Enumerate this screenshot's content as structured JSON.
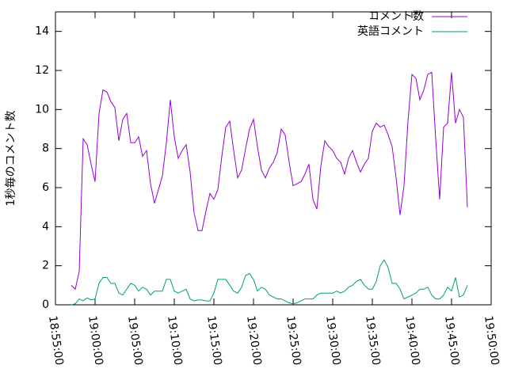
{
  "chart_data": {
    "type": "line",
    "y_label": "1秒毎のコメント数",
    "x": [
      "18:57:00",
      "18:57:30",
      "18:58:00",
      "18:58:30",
      "18:59:00",
      "18:59:30",
      "19:00:00",
      "19:00:30",
      "19:01:00",
      "19:01:30",
      "19:02:00",
      "19:02:30",
      "19:03:00",
      "19:03:30",
      "19:04:00",
      "19:04:30",
      "19:05:00",
      "19:05:30",
      "19:06:00",
      "19:06:30",
      "19:07:00",
      "19:07:30",
      "19:08:00",
      "19:08:30",
      "19:09:00",
      "19:09:30",
      "19:10:00",
      "19:10:30",
      "19:11:00",
      "19:11:30",
      "19:12:00",
      "19:12:30",
      "19:13:00",
      "19:13:30",
      "19:14:00",
      "19:14:30",
      "19:15:00",
      "19:15:30",
      "19:16:00",
      "19:16:30",
      "19:17:00",
      "19:17:30",
      "19:18:00",
      "19:18:30",
      "19:19:00",
      "19:19:30",
      "19:20:00",
      "19:20:30",
      "19:21:00",
      "19:21:30",
      "19:22:00",
      "19:22:30",
      "19:23:00",
      "19:23:30",
      "19:24:00",
      "19:24:30",
      "19:25:00",
      "19:25:30",
      "19:26:00",
      "19:26:30",
      "19:27:00",
      "19:27:30",
      "19:28:00",
      "19:28:30",
      "19:29:00",
      "19:29:30",
      "19:30:00",
      "19:30:30",
      "19:31:00",
      "19:31:30",
      "19:32:00",
      "19:32:30",
      "19:33:00",
      "19:33:30",
      "19:34:00",
      "19:34:30",
      "19:35:00",
      "19:35:30",
      "19:36:00",
      "19:36:30",
      "19:37:00",
      "19:37:30",
      "19:38:00",
      "19:38:30",
      "19:39:00",
      "19:39:30",
      "19:40:00",
      "19:40:30",
      "19:41:00",
      "19:41:30",
      "19:42:00",
      "19:42:30",
      "19:43:00",
      "19:43:30",
      "19:44:00",
      "19:44:30",
      "19:45:00",
      "19:45:30",
      "19:46:00",
      "19:46:30",
      "19:47:00"
    ],
    "series": [
      {
        "name": "コメント数",
        "color": "#9400d3",
        "values": [
          1.0,
          0.8,
          1.7,
          8.5,
          8.2,
          7.2,
          6.3,
          9.8,
          11.0,
          10.9,
          10.4,
          10.1,
          8.4,
          9.5,
          9.8,
          8.3,
          8.3,
          8.6,
          7.6,
          7.9,
          6.2,
          5.2,
          5.9,
          6.6,
          8.3,
          10.5,
          8.6,
          7.5,
          7.9,
          8.2,
          6.8,
          4.7,
          3.8,
          3.8,
          4.8,
          5.7,
          5.4,
          5.9,
          7.6,
          9.1,
          9.4,
          7.9,
          6.5,
          6.9,
          8.0,
          9.0,
          9.5,
          8.1,
          6.9,
          6.5,
          7.0,
          7.3,
          7.8,
          9.0,
          8.7,
          7.3,
          6.1,
          6.2,
          6.3,
          6.7,
          7.2,
          5.4,
          4.9,
          7.1,
          8.4,
          8.1,
          7.9,
          7.5,
          7.3,
          6.7,
          7.5,
          7.9,
          7.3,
          6.8,
          7.2,
          7.5,
          8.9,
          9.3,
          9.1,
          9.2,
          8.7,
          8.1,
          6.5,
          4.6,
          6.1,
          9.4,
          11.8,
          11.6,
          10.5,
          11.0,
          11.8,
          11.9,
          8.5,
          5.4,
          9.1,
          9.3,
          11.9,
          9.3,
          10.0,
          9.6,
          5.0
        ]
      },
      {
        "name": "英語コメント",
        "color": "#009e73",
        "values": [
          0.0,
          0.05,
          0.3,
          0.2,
          0.35,
          0.25,
          0.3,
          1.1,
          1.4,
          1.4,
          1.1,
          1.1,
          0.6,
          0.5,
          0.8,
          1.1,
          1.0,
          0.7,
          0.9,
          0.8,
          0.5,
          0.7,
          0.7,
          0.7,
          1.3,
          1.3,
          0.7,
          0.6,
          0.7,
          0.8,
          0.3,
          0.2,
          0.25,
          0.25,
          0.2,
          0.2,
          0.6,
          1.3,
          1.3,
          1.3,
          1.0,
          0.7,
          0.6,
          0.9,
          1.5,
          1.6,
          1.3,
          0.7,
          0.9,
          0.8,
          0.5,
          0.4,
          0.3,
          0.3,
          0.2,
          0.1,
          0.05,
          0.1,
          0.2,
          0.3,
          0.3,
          0.3,
          0.5,
          0.6,
          0.6,
          0.6,
          0.6,
          0.7,
          0.6,
          0.7,
          0.9,
          1.0,
          1.2,
          1.3,
          1.0,
          0.8,
          0.8,
          1.2,
          2.0,
          2.3,
          1.9,
          1.1,
          1.1,
          0.8,
          0.3,
          0.4,
          0.5,
          0.6,
          0.8,
          0.8,
          0.9,
          0.5,
          0.3,
          0.3,
          0.5,
          0.9,
          0.7,
          1.4,
          0.4,
          0.5,
          1.0
        ]
      }
    ],
    "xlim": [
      "18:55:00",
      "19:50:00"
    ],
    "xticks": [
      "18:55:00",
      "19:00:00",
      "19:05:00",
      "19:10:00",
      "19:15:00",
      "19:20:00",
      "19:25:00",
      "19:30:00",
      "19:35:00",
      "19:40:00",
      "19:45:00",
      "19:50:00"
    ],
    "ylim": [
      0,
      15
    ],
    "yticks": [
      0,
      2,
      4,
      6,
      8,
      10,
      12,
      14
    ],
    "legend": "top-right"
  }
}
